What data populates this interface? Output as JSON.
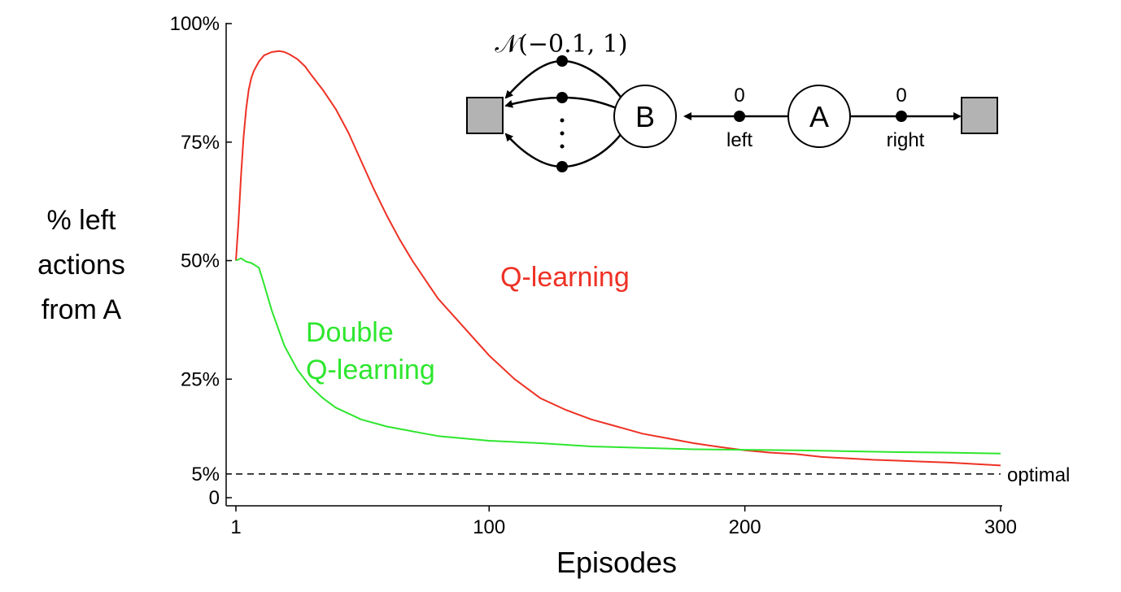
{
  "chart_data": {
    "type": "line",
    "title": "",
    "xlabel": "Episodes",
    "ylabel_lines": [
      "% left",
      "actions",
      "from A"
    ],
    "xlim": [
      1,
      300
    ],
    "ylim": [
      0,
      100
    ],
    "x_ticks": [
      {
        "value": 1,
        "label": "1"
      },
      {
        "value": 100,
        "label": "100"
      },
      {
        "value": 200,
        "label": "200"
      },
      {
        "value": 300,
        "label": "300"
      }
    ],
    "y_ticks": [
      {
        "value": 0,
        "label": "0"
      },
      {
        "value": 5,
        "label": "5%"
      },
      {
        "value": 25,
        "label": "25%"
      },
      {
        "value": 50,
        "label": "50%"
      },
      {
        "value": 75,
        "label": "75%"
      },
      {
        "value": 100,
        "label": "100%"
      }
    ],
    "grid": false,
    "series": [
      {
        "name": "Q-learning",
        "label_lines": [
          "Q-learning"
        ],
        "color": "#ee3124",
        "x": [
          1,
          2,
          3,
          4,
          5,
          6,
          7,
          8,
          10,
          12,
          15,
          18,
          20,
          22,
          25,
          28,
          30,
          35,
          40,
          45,
          50,
          55,
          60,
          65,
          70,
          75,
          80,
          85,
          90,
          95,
          100,
          110,
          120,
          130,
          140,
          150,
          160,
          170,
          180,
          190,
          200,
          210,
          220,
          230,
          240,
          250,
          260,
          270,
          280,
          290,
          300
        ],
        "y": [
          50,
          58,
          68,
          76,
          82,
          86,
          88.5,
          90,
          92,
          93.3,
          94,
          94.2,
          94,
          93.5,
          92.5,
          91,
          89.5,
          86,
          82,
          77,
          71,
          65,
          59.5,
          54.5,
          50,
          46,
          42,
          39,
          36,
          33,
          30,
          25,
          21,
          18.5,
          16.5,
          15,
          13.5,
          12.5,
          11.5,
          10.7,
          10,
          9.5,
          9.2,
          8.6,
          8.3,
          8.0,
          7.8,
          7.6,
          7.4,
          7.1,
          6.8
        ]
      },
      {
        "name": "Double Q-learning",
        "label_lines": [
          "Double",
          "Q-learning"
        ],
        "color": "#2ee62e",
        "x": [
          1,
          3,
          5,
          7,
          10,
          12,
          15,
          18,
          20,
          25,
          30,
          35,
          40,
          50,
          60,
          70,
          80,
          90,
          100,
          120,
          140,
          160,
          180,
          200,
          220,
          240,
          260,
          280,
          300
        ],
        "y": [
          50,
          50.5,
          49.8,
          49.5,
          48.5,
          45,
          39.5,
          35,
          32,
          27,
          23.5,
          21,
          19,
          16.5,
          15,
          14,
          13,
          12.5,
          12,
          11.5,
          10.8,
          10.5,
          10.2,
          10.1,
          10,
          9.8,
          9.6,
          9.5,
          9.3
        ]
      },
      {
        "name": "optimal",
        "label_lines": [
          "optimal"
        ],
        "color": "#000000",
        "dashed": true,
        "x": [
          1,
          300
        ],
        "y": [
          5,
          5
        ]
      }
    ],
    "diagram": {
      "node_a": "A",
      "node_b": "B",
      "reward_left": "0",
      "reward_right": "0",
      "action_left": "left",
      "action_right": "right",
      "distribution": "𝒩(−0.1, 1)"
    }
  }
}
